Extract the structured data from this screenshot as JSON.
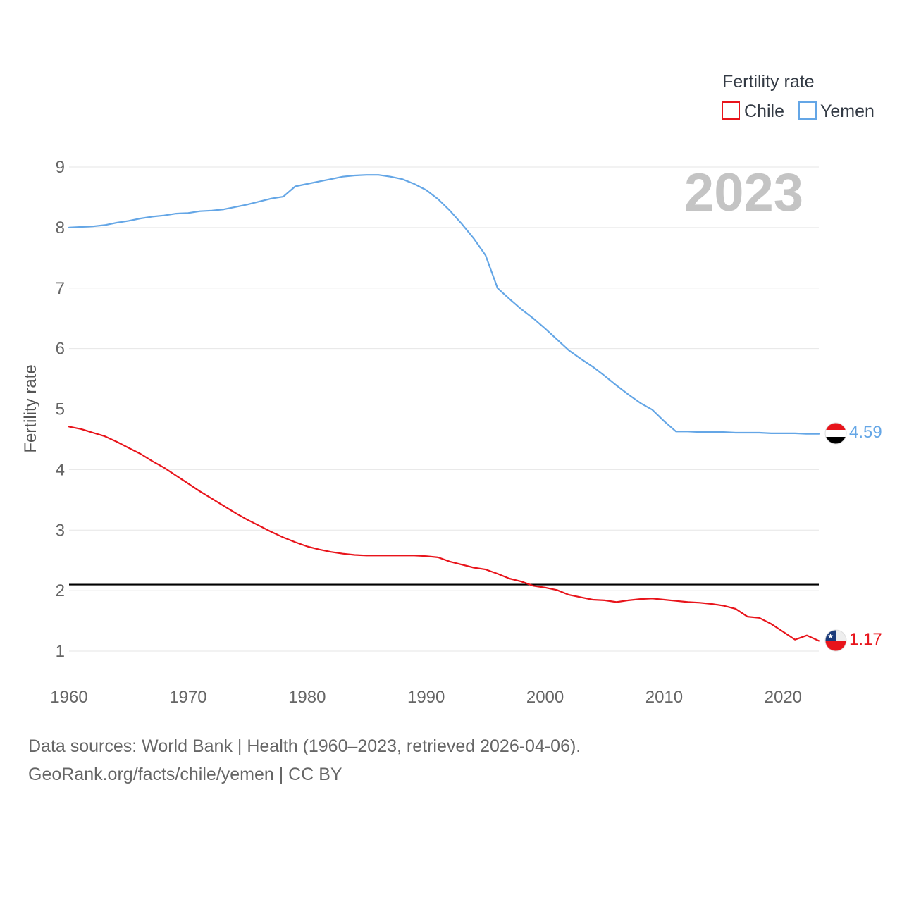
{
  "chart_data": {
    "type": "line",
    "title": "",
    "year_label": "2023",
    "ylabel": "Fertility rate",
    "xlabel": "",
    "xlim": [
      1960,
      2023
    ],
    "ylim": [
      0.5,
      9.2
    ],
    "yticks": [
      1,
      2,
      3,
      4,
      5,
      6,
      7,
      8,
      9
    ],
    "ytick_labels": [
      "1",
      "2",
      "3",
      "4",
      "5",
      "6",
      "7",
      "8",
      "9"
    ],
    "xticks": [
      1960,
      1970,
      1980,
      1990,
      2000,
      2010,
      2020
    ],
    "xtick_labels": [
      "1960",
      "1970",
      "1980",
      "1990",
      "2000",
      "2010",
      "2020"
    ],
    "legend": {
      "title": "Fertility rate",
      "position": "top-right",
      "entries": [
        "Chile",
        "Yemen"
      ]
    },
    "reference_line": {
      "value": 2.1,
      "color": "#000000"
    },
    "x": [
      1960,
      1961,
      1962,
      1963,
      1964,
      1965,
      1966,
      1967,
      1968,
      1969,
      1970,
      1971,
      1972,
      1973,
      1974,
      1975,
      1976,
      1977,
      1978,
      1979,
      1980,
      1981,
      1982,
      1983,
      1984,
      1985,
      1986,
      1987,
      1988,
      1989,
      1990,
      1991,
      1992,
      1993,
      1994,
      1995,
      1996,
      1997,
      1998,
      1999,
      2000,
      2001,
      2002,
      2003,
      2004,
      2005,
      2006,
      2007,
      2008,
      2009,
      2010,
      2011,
      2012,
      2013,
      2014,
      2015,
      2016,
      2017,
      2018,
      2019,
      2020,
      2021,
      2022,
      2023
    ],
    "series": [
      {
        "name": "Chile",
        "color": "#e8141b",
        "end_label": "1.17",
        "values": [
          4.71,
          4.67,
          4.61,
          4.55,
          4.46,
          4.36,
          4.26,
          4.14,
          4.03,
          3.9,
          3.77,
          3.64,
          3.52,
          3.4,
          3.28,
          3.17,
          3.07,
          2.97,
          2.88,
          2.8,
          2.73,
          2.68,
          2.64,
          2.61,
          2.59,
          2.58,
          2.58,
          2.58,
          2.58,
          2.58,
          2.57,
          2.55,
          2.48,
          2.43,
          2.38,
          2.35,
          2.28,
          2.2,
          2.15,
          2.08,
          2.05,
          2.01,
          1.93,
          1.89,
          1.85,
          1.84,
          1.81,
          1.84,
          1.86,
          1.87,
          1.85,
          1.83,
          1.81,
          1.8,
          1.78,
          1.75,
          1.7,
          1.57,
          1.55,
          1.45,
          1.32,
          1.19,
          1.26,
          1.17
        ]
      },
      {
        "name": "Yemen",
        "color": "#64a6e6",
        "end_label": "4.59",
        "values": [
          8.0,
          8.01,
          8.02,
          8.04,
          8.08,
          8.11,
          8.15,
          8.18,
          8.2,
          8.23,
          8.24,
          8.27,
          8.28,
          8.3,
          8.34,
          8.38,
          8.43,
          8.48,
          8.51,
          8.68,
          8.72,
          8.76,
          8.8,
          8.84,
          8.86,
          8.87,
          8.87,
          8.84,
          8.8,
          8.72,
          8.62,
          8.47,
          8.28,
          8.06,
          7.82,
          7.54,
          7.0,
          6.82,
          6.65,
          6.5,
          6.33,
          6.15,
          5.97,
          5.83,
          5.7,
          5.55,
          5.39,
          5.24,
          5.1,
          4.99,
          4.8,
          4.63,
          4.63,
          4.62,
          4.62,
          4.62,
          4.61,
          4.61,
          4.61,
          4.6,
          4.6,
          4.6,
          4.59,
          4.59
        ]
      }
    ]
  },
  "footer": {
    "source": "Data sources: World Bank | Health (1960–2023, retrieved 2026-04-06).",
    "attribution": "GeoRank.org/facts/chile/yemen | CC BY"
  },
  "icons": {
    "chile_flag": "chile-flag-icon",
    "yemen_flag": "yemen-flag-icon"
  }
}
